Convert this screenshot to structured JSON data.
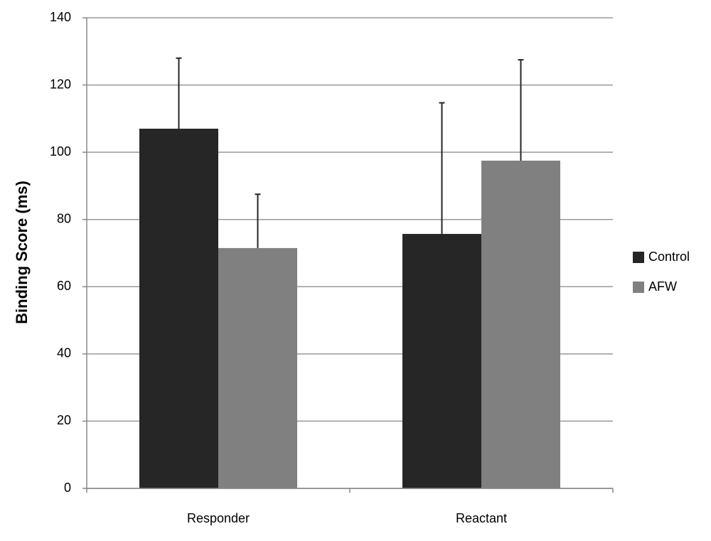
{
  "chart_data": {
    "type": "bar",
    "y_label": "Binding Score (ms)",
    "categories": [
      "Responder",
      "Reactant"
    ],
    "series": [
      {
        "name": "Control",
        "color": "#262626",
        "values": [
          107,
          75.7
        ],
        "errors": [
          21,
          39
        ]
      },
      {
        "name": "AFW",
        "color": "#808080",
        "values": [
          71.5,
          97.5
        ],
        "errors": [
          16,
          30
        ]
      }
    ],
    "ylim": [
      0,
      140
    ],
    "yticks": [
      0,
      20,
      40,
      60,
      80,
      100,
      120,
      140
    ],
    "grid": true,
    "legend": "right"
  }
}
